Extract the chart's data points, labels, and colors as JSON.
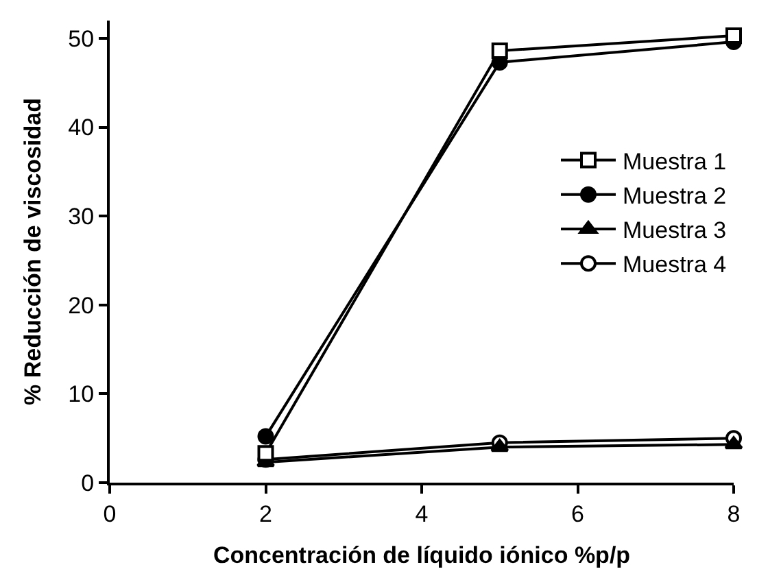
{
  "chart_data": {
    "type": "line",
    "xlabel": "Concentración de líquido iónico %p/p",
    "ylabel": "% Reducción de viscosidad",
    "x": [
      2,
      5,
      8
    ],
    "series": [
      {
        "name": "Muestra 1",
        "color": "#000000",
        "values": [
          3.3,
          48.6,
          50.3
        ],
        "marker": "square-open"
      },
      {
        "name": "Muestra 2",
        "color": "#000000",
        "values": [
          5.2,
          47.3,
          49.6
        ],
        "marker": "circle"
      },
      {
        "name": "Muestra 3",
        "color": "#000000",
        "values": [
          2.3,
          4.0,
          4.3
        ],
        "marker": "triangle"
      },
      {
        "name": "Muestra 4",
        "color": "#000000",
        "values": [
          2.6,
          4.5,
          5.0
        ],
        "marker": "circle-open"
      }
    ],
    "xlim": [
      0,
      8
    ],
    "xticks": [
      0,
      2,
      4,
      6,
      8
    ],
    "ylim": [
      0,
      52
    ],
    "yticks": [
      0,
      10,
      20,
      30,
      40,
      50
    ],
    "legend": "right",
    "line_style": "solid"
  }
}
